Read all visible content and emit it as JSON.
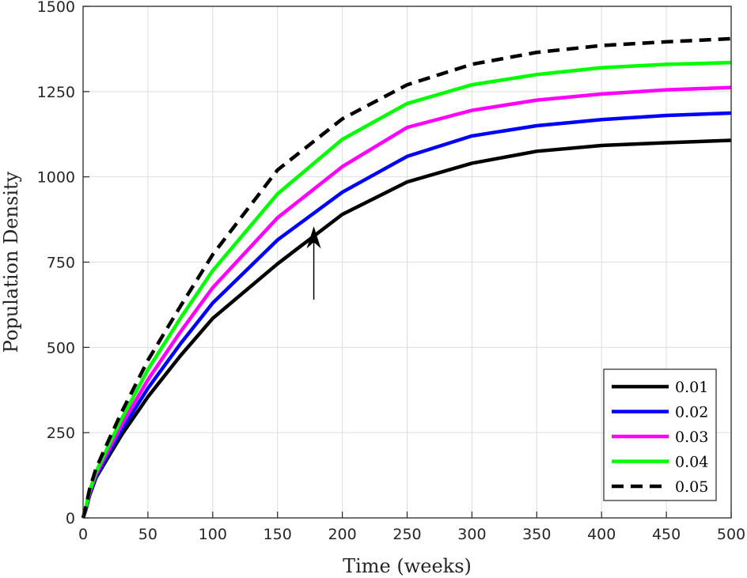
{
  "chart_data": {
    "type": "line",
    "xlabel": "Time (weeks)",
    "ylabel": "Population Density",
    "xlim": [
      0,
      500
    ],
    "ylim": [
      0,
      1500
    ],
    "xticks": [
      0,
      50,
      100,
      150,
      200,
      250,
      300,
      350,
      400,
      450,
      500
    ],
    "yticks": [
      0,
      250,
      500,
      750,
      1000,
      1250,
      1500
    ],
    "grid": true,
    "legend_position": "bottom-right",
    "x": [
      0,
      2,
      5,
      10,
      20,
      30,
      50,
      75,
      100,
      150,
      200,
      250,
      300,
      350,
      400,
      450,
      500
    ],
    "series": [
      {
        "name": "0.01",
        "color": "#000000",
        "dash": "solid",
        "values": [
          0,
          22,
          66,
          118,
          182,
          245,
          355,
          475,
          585,
          745,
          890,
          985,
          1040,
          1075,
          1092,
          1100,
          1107
        ]
      },
      {
        "name": "0.02",
        "color": "#0000ff",
        "dash": "solid",
        "values": [
          0,
          24,
          70,
          122,
          192,
          260,
          380,
          510,
          630,
          815,
          955,
          1060,
          1120,
          1150,
          1168,
          1180,
          1187
        ]
      },
      {
        "name": "0.03",
        "color": "#ff00ff",
        "dash": "solid",
        "values": [
          0,
          26,
          74,
          128,
          202,
          275,
          405,
          545,
          675,
          880,
          1030,
          1145,
          1195,
          1225,
          1243,
          1255,
          1262
        ]
      },
      {
        "name": "0.04",
        "color": "#00ff00",
        "dash": "solid",
        "values": [
          0,
          28,
          78,
          135,
          215,
          292,
          435,
          585,
          725,
          950,
          1110,
          1215,
          1270,
          1300,
          1320,
          1330,
          1335
        ]
      },
      {
        "name": "0.05",
        "color": "#000000",
        "dash": "dashed",
        "values": [
          0,
          30,
          84,
          145,
          230,
          312,
          462,
          620,
          772,
          1020,
          1170,
          1270,
          1330,
          1365,
          1385,
          1396,
          1405
        ]
      }
    ],
    "annotation": {
      "type": "arrow",
      "from": [
        178,
        640
      ],
      "to": [
        178,
        855
      ]
    }
  }
}
